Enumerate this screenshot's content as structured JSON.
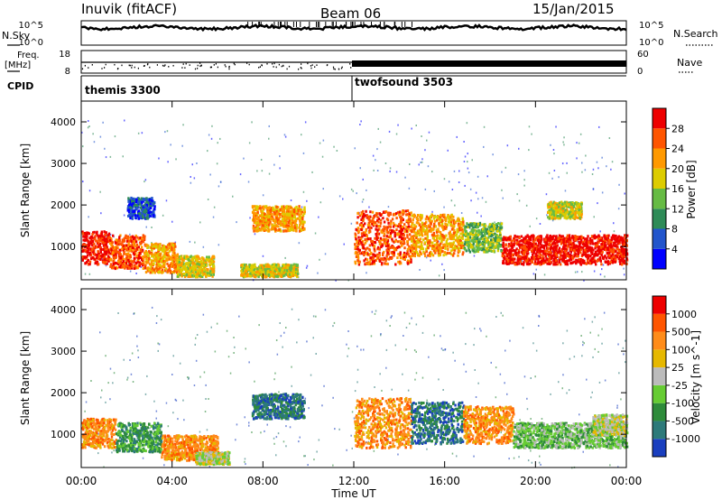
{
  "header": {
    "station": "Inuvik (fitACF)",
    "beam": "Beam 06",
    "date": "15/Jan/2015"
  },
  "noise_panel": {
    "left_label": "N.Sky",
    "right_label": "N.Search",
    "left_ticks": [
      "10^5",
      "10^0"
    ],
    "right_ticks": [
      "10^5",
      "10^0"
    ]
  },
  "freq_panel": {
    "left_label_1": "Freq.",
    "left_label_2": "[MHz]",
    "right_label": "Nave",
    "left_ticks": [
      "18",
      "8"
    ],
    "right_ticks": [
      "60",
      "0"
    ]
  },
  "cpid": {
    "label": "CPID",
    "modes": [
      {
        "name": "themis 3300",
        "start_hour": 0,
        "end_hour": 12
      },
      {
        "name": "twofsound 3503",
        "start_hour": 12,
        "end_hour": 24
      }
    ]
  },
  "colors": {
    "power": [
      "#0000ff",
      "#2255cc",
      "#2e8b57",
      "#66bb44",
      "#ddcc00",
      "#ff9900",
      "#ff5500",
      "#ee0000"
    ],
    "velocity": [
      "#1a3fbf",
      "#2d7a7a",
      "#2e8b3a",
      "#66cc33",
      "#bbbbbb",
      "#e6b800",
      "#ff8c1a",
      "#ff5500",
      "#ee0000"
    ]
  },
  "chart_data": [
    {
      "type": "heatmap",
      "name": "power",
      "xlabel": "",
      "ylabel": "Slant Range [km]",
      "colorbar_label": "Power [dB]",
      "colorbar_ticks": [
        "28",
        "24",
        "20",
        "16",
        "12",
        "8",
        "4"
      ],
      "x_ticks": [
        "00:00",
        "04:00",
        "08:00",
        "12:00",
        "16:00",
        "20:00",
        "00:00"
      ],
      "y_ticks": [
        1000,
        2000,
        3000,
        4000
      ],
      "xlim_hours": [
        0,
        24
      ],
      "ylim_km": [
        200,
        4500
      ],
      "regions": [
        {
          "t": [
            0.0,
            1.2
          ],
          "r": [
            600,
            1400
          ],
          "level": 7
        },
        {
          "t": [
            1.2,
            2.8
          ],
          "r": [
            500,
            1300
          ],
          "level": 6
        },
        {
          "t": [
            2.8,
            4.2
          ],
          "r": [
            400,
            1100
          ],
          "level": 5
        },
        {
          "t": [
            4.2,
            5.8
          ],
          "r": [
            300,
            800
          ],
          "level": 4
        },
        {
          "t": [
            2.0,
            3.2
          ],
          "r": [
            1700,
            2200
          ],
          "level": 1
        },
        {
          "t": [
            7.5,
            9.8
          ],
          "r": [
            1400,
            2000
          ],
          "level": 5
        },
        {
          "t": [
            7.0,
            9.5
          ],
          "r": [
            300,
            600
          ],
          "level": 4
        },
        {
          "t": [
            12.0,
            14.5
          ],
          "r": [
            600,
            1900
          ],
          "level": 6
        },
        {
          "t": [
            14.5,
            16.8
          ],
          "r": [
            800,
            1800
          ],
          "level": 5
        },
        {
          "t": [
            16.8,
            18.5
          ],
          "r": [
            900,
            1600
          ],
          "level": 3
        },
        {
          "t": [
            18.5,
            24.0
          ],
          "r": [
            600,
            1300
          ],
          "level": 7
        },
        {
          "t": [
            20.5,
            22.0
          ],
          "r": [
            1700,
            2100
          ],
          "level": 4
        }
      ]
    },
    {
      "type": "heatmap",
      "name": "velocity",
      "xlabel": "Time UT",
      "ylabel": "Slant Range [km]",
      "colorbar_label": "Velocity [m s^-1]",
      "colorbar_ticks": [
        "1000",
        "500",
        "100",
        "25",
        "-25",
        "-100",
        "-500",
        "-1000"
      ],
      "x_ticks": [
        "00:00",
        "04:00",
        "08:00",
        "12:00",
        "16:00",
        "20:00",
        "00:00"
      ],
      "y_ticks": [
        1000,
        2000,
        3000,
        4000
      ],
      "xlim_hours": [
        0,
        24
      ],
      "ylim_km": [
        200,
        4500
      ],
      "regions": [
        {
          "t": [
            0.0,
            1.5
          ],
          "r": [
            700,
            1400
          ],
          "level": 6
        },
        {
          "t": [
            1.5,
            3.5
          ],
          "r": [
            600,
            1300
          ],
          "level": 2
        },
        {
          "t": [
            3.5,
            6.0
          ],
          "r": [
            400,
            1000
          ],
          "level": 6
        },
        {
          "t": [
            5.0,
            6.5
          ],
          "r": [
            300,
            600
          ],
          "level": 4
        },
        {
          "t": [
            7.5,
            9.8
          ],
          "r": [
            1400,
            2000
          ],
          "level": 1
        },
        {
          "t": [
            12.0,
            14.5
          ],
          "r": [
            700,
            1900
          ],
          "level": 6
        },
        {
          "t": [
            14.5,
            16.8
          ],
          "r": [
            800,
            1800
          ],
          "level": 1
        },
        {
          "t": [
            16.8,
            19.0
          ],
          "r": [
            800,
            1700
          ],
          "level": 6
        },
        {
          "t": [
            19.0,
            24.0
          ],
          "r": [
            700,
            1300
          ],
          "level": 3
        },
        {
          "t": [
            22.5,
            24.0
          ],
          "r": [
            1000,
            1500
          ],
          "level": 4
        }
      ]
    }
  ]
}
